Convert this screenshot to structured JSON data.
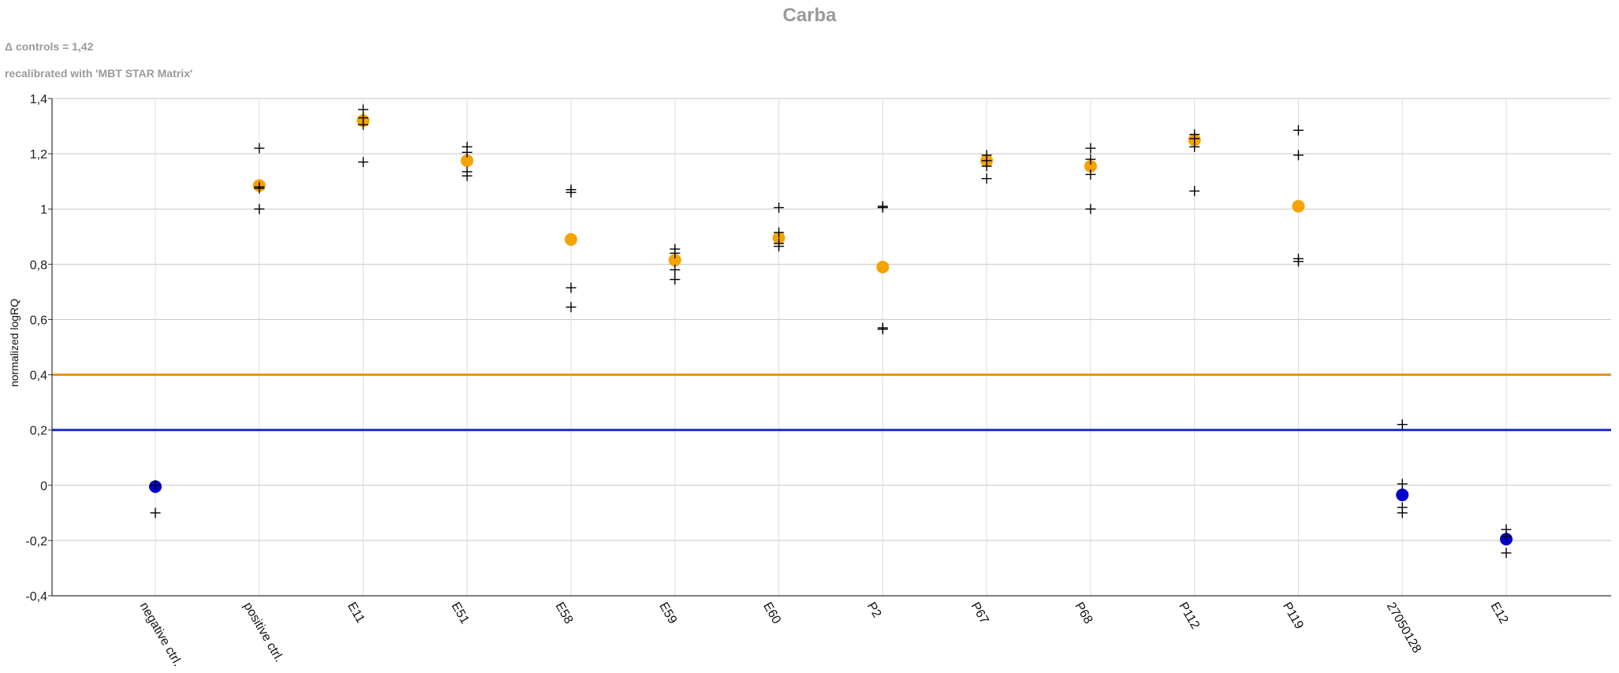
{
  "chart_data": {
    "type": "scatter",
    "title": "Carba",
    "subtitle_lines": [
      "Δ controls = 1,42",
      "recalibrated with 'MBT STAR Matrix'"
    ],
    "xlabel": "",
    "ylabel": "normalized logRQ",
    "ylim": [
      -0.4,
      1.4
    ],
    "yticks": [
      -0.4,
      -0.2,
      0,
      0.2,
      0.4,
      0.6,
      0.8,
      1,
      1.2,
      1.4
    ],
    "ytick_labels": [
      "-0,4",
      "-0,2",
      "0",
      "0,2",
      "0,4",
      "0,6",
      "0,8",
      "1",
      "1,2",
      "1,4"
    ],
    "grid": true,
    "legend": "none",
    "categories": [
      "negative ctrl.",
      "positive ctrl.",
      "E11",
      "E51",
      "E58",
      "E59",
      "E60",
      "P2",
      "P67",
      "P68",
      "P112",
      "P119",
      "27050128",
      "E12"
    ],
    "series": [
      {
        "marker": "circle",
        "values": [
          -0.005,
          1.085,
          1.32,
          1.175,
          0.89,
          0.815,
          0.895,
          0.79,
          1.175,
          1.155,
          1.25,
          1.01,
          -0.035,
          -0.195
        ],
        "point_colors": [
          "#0000cc",
          "#f5a300",
          "#f5a300",
          "#f5a300",
          "#f5a300",
          "#f5a300",
          "#f5a300",
          "#f5a300",
          "#f5a300",
          "#f5a300",
          "#f5a300",
          "#f5a300",
          "#0000cc",
          "#0000cc"
        ]
      },
      {
        "marker": "plus",
        "color": "#000000",
        "points": [
          [
            0,
            0.0
          ],
          [
            0,
            -0.1
          ],
          [
            1,
            1.22
          ],
          [
            1,
            1.08
          ],
          [
            1,
            1.075
          ],
          [
            1,
            1.0
          ],
          [
            2,
            1.36
          ],
          [
            2,
            1.33
          ],
          [
            2,
            1.305
          ],
          [
            2,
            1.17
          ],
          [
            3,
            1.225
          ],
          [
            3,
            1.205
          ],
          [
            3,
            1.135
          ],
          [
            3,
            1.12
          ],
          [
            4,
            1.07
          ],
          [
            4,
            1.06
          ],
          [
            4,
            0.715
          ],
          [
            4,
            0.645
          ],
          [
            5,
            0.855
          ],
          [
            5,
            0.84
          ],
          [
            5,
            0.78
          ],
          [
            5,
            0.745
          ],
          [
            6,
            1.005
          ],
          [
            6,
            0.915
          ],
          [
            6,
            0.875
          ],
          [
            6,
            0.865
          ],
          [
            7,
            1.01
          ],
          [
            7,
            1.005
          ],
          [
            7,
            0.57
          ],
          [
            7,
            0.565
          ],
          [
            8,
            1.195
          ],
          [
            8,
            1.175
          ],
          [
            8,
            1.155
          ],
          [
            8,
            1.11
          ],
          [
            9,
            1.22
          ],
          [
            9,
            1.18
          ],
          [
            9,
            1.125
          ],
          [
            9,
            1.0
          ],
          [
            10,
            1.27
          ],
          [
            10,
            1.255
          ],
          [
            10,
            1.225
          ],
          [
            10,
            1.065
          ],
          [
            11,
            1.285
          ],
          [
            11,
            1.195
          ],
          [
            11,
            0.82
          ],
          [
            11,
            0.81
          ],
          [
            12,
            0.22
          ],
          [
            12,
            0.005
          ],
          [
            12,
            -0.08
          ],
          [
            12,
            -0.1
          ],
          [
            13,
            -0.16
          ],
          [
            13,
            -0.185
          ],
          [
            13,
            -0.245
          ]
        ]
      }
    ],
    "thresholds": [
      {
        "value": 0.4,
        "color": "#f0901a"
      },
      {
        "value": 0.2,
        "color": "#1c2fd0"
      }
    ]
  }
}
